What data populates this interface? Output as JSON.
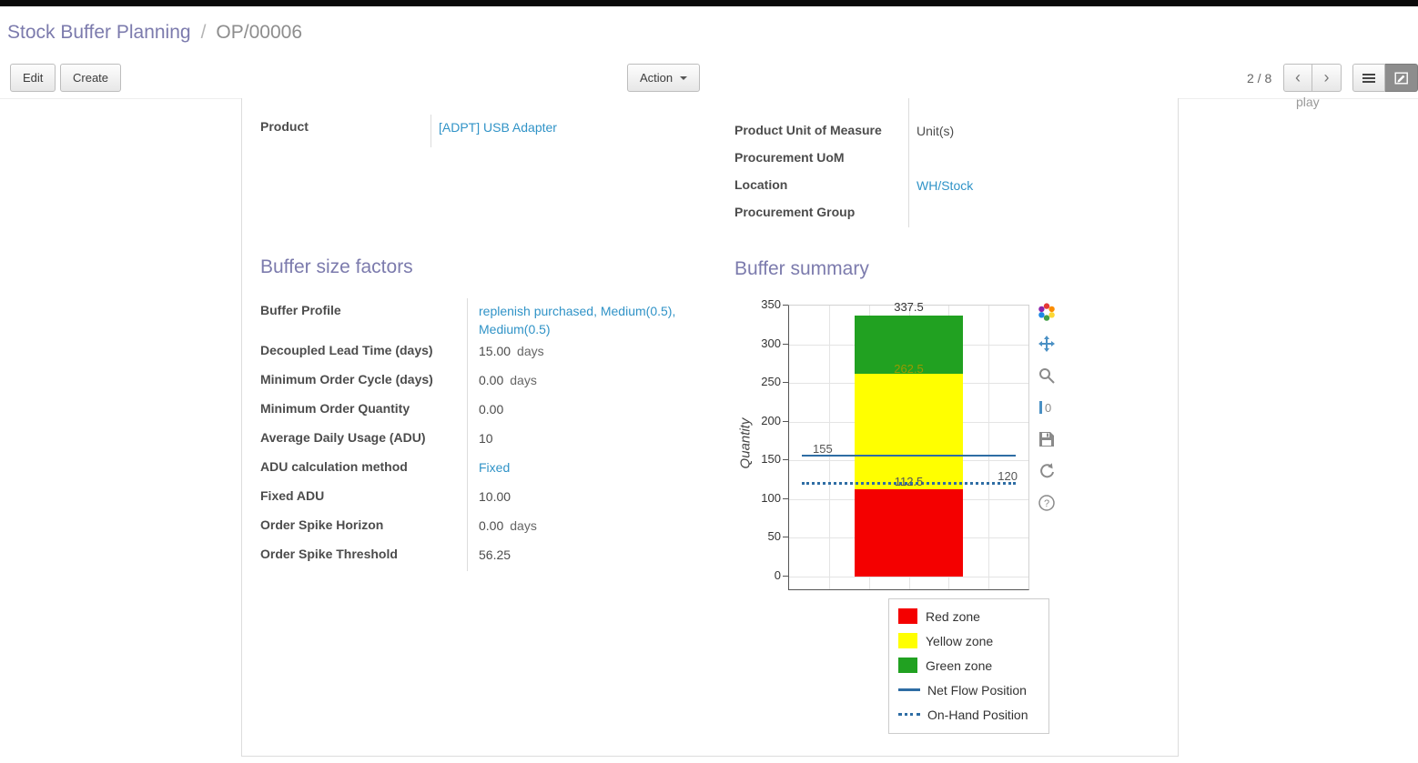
{
  "breadcrumb": {
    "parent": "Stock Buffer Planning",
    "separator": "/",
    "current": "OP/00006"
  },
  "toolbar": {
    "edit_label": "Edit",
    "create_label": "Create",
    "action_label": "Action",
    "pager": "2 / 8"
  },
  "background_partial_text": "play",
  "sheet": {
    "product_field": {
      "label": "Product",
      "value": "[ADPT] USB Adapter"
    },
    "right_fields": [
      {
        "label": "Product Unit of Measure",
        "value": "Unit(s)",
        "link": false
      },
      {
        "label": "Procurement UoM",
        "value": "",
        "link": false
      },
      {
        "label": "Location",
        "value": "WH/Stock",
        "link": true
      },
      {
        "label": "Procurement Group",
        "value": "",
        "link": false
      }
    ],
    "sections": {
      "factors_title": "Buffer size factors",
      "summary_title": "Buffer summary"
    },
    "factors_rows": [
      {
        "label": "Buffer Profile",
        "value": "replenish purchased, Medium(0.5), Medium(0.5)",
        "suffix": "",
        "link": true
      },
      {
        "label": "Decoupled Lead Time (days)",
        "value": "15.00",
        "suffix": "days",
        "link": false
      },
      {
        "label": "Minimum Order Cycle (days)",
        "value": "0.00",
        "suffix": "days",
        "link": false
      },
      {
        "label": "Minimum Order Quantity",
        "value": "0.00",
        "suffix": "",
        "link": false
      },
      {
        "label": "Average Daily Usage (ADU)",
        "value": "10",
        "suffix": "",
        "link": false
      },
      {
        "label": "ADU calculation method",
        "value": "Fixed",
        "suffix": "",
        "link": true
      },
      {
        "label": "Fixed ADU",
        "value": "10.00",
        "suffix": "",
        "link": false
      },
      {
        "label": "Order Spike Horizon",
        "value": "0.00",
        "suffix": "days",
        "link": false
      },
      {
        "label": "Order Spike Threshold",
        "value": "56.25",
        "suffix": "",
        "link": false
      }
    ]
  },
  "chart_data": {
    "type": "bar",
    "title": "Buffer summary",
    "ylabel": "Quantity",
    "ylim": [
      0,
      350
    ],
    "yticks": [
      0,
      50,
      100,
      150,
      200,
      250,
      300,
      350
    ],
    "x_cells": 6,
    "grid": true,
    "legend_position": "bottom-right",
    "bar": {
      "zones": [
        {
          "name": "Red zone",
          "from": 0,
          "to": 112.5,
          "color": "#f40000"
        },
        {
          "name": "Yellow zone",
          "from": 112.5,
          "to": 262.5,
          "color": "#ffff00"
        },
        {
          "name": "Green zone",
          "from": 262.5,
          "to": 337.5,
          "color": "#21a121"
        }
      ]
    },
    "lines": [
      {
        "name": "Net Flow Position",
        "value": 155,
        "style": "solid",
        "color": "#2e6da4"
      },
      {
        "name": "On-Hand Position",
        "value": 120,
        "style": "dotted",
        "color": "#2e6da4"
      }
    ],
    "annotations": [
      {
        "text": "337.5",
        "value": 337.5,
        "anchor": "bar",
        "dy": -17,
        "color": "#333333"
      },
      {
        "text": "262.5",
        "value": 262.5,
        "anchor": "bar",
        "dy": -13,
        "color": "#9a9a00"
      },
      {
        "text": "155",
        "value": 155,
        "anchor": "left",
        "dy": -16,
        "color": "#555555"
      },
      {
        "text": "112.5",
        "value": 112.5,
        "anchor": "bar",
        "dy": -16,
        "color": "#555555"
      },
      {
        "text": "120",
        "value": 120,
        "anchor": "right",
        "dy": -16,
        "color": "#555555"
      }
    ],
    "legend": [
      {
        "label": "Red zone",
        "swatch": "rect",
        "color": "#f40000"
      },
      {
        "label": "Yellow zone",
        "swatch": "rect",
        "color": "#ffff00"
      },
      {
        "label": "Green zone",
        "swatch": "rect",
        "color": "#21a121"
      },
      {
        "label": "Net Flow Position",
        "swatch": "line",
        "color": "#2e6da4"
      },
      {
        "label": "On-Hand Position",
        "swatch": "dots",
        "color": "#2e6da4"
      }
    ]
  }
}
